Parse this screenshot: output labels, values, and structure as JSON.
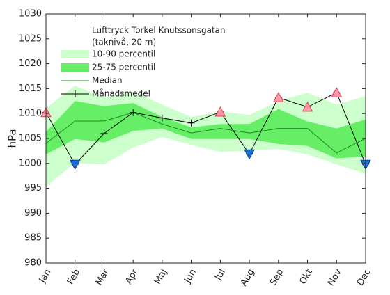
{
  "chart_data": {
    "type": "band-line",
    "legend_title": [
      "Lufttryck Torkel Knutssonsgatan",
      "(taknivå, 20 m)"
    ],
    "ylabel": "hPa",
    "categories": [
      "Jan",
      "Feb",
      "Mar",
      "Apr",
      "Maj",
      "Jun",
      "Jul",
      "Aug",
      "Sep",
      "Okt",
      "Nov",
      "Dec"
    ],
    "ylim": [
      980,
      1030
    ],
    "yticks": [
      980,
      985,
      990,
      995,
      1000,
      1005,
      1010,
      1015,
      1020,
      1025,
      1030
    ],
    "legend": "upper left",
    "series": [
      {
        "name": "10-90 percentil",
        "kind": "band",
        "color": "#ccffcc",
        "upper": [
          1011.1,
          1015.6,
          1013.2,
          1014.4,
          1011.8,
          1009.3,
          1010.4,
          1009.7,
          1012.5,
          1014.2,
          1011.8,
          1013.5
        ],
        "lower": [
          995.4,
          1000.1,
          999.8,
          1003.2,
          1005.3,
          1003.7,
          1002.3,
          1002.6,
          1002.9,
          1001.8,
          999.8,
          997.9
        ]
      },
      {
        "name": "25-75 percentil",
        "kind": "band",
        "color": "#66ee66",
        "upper": [
          1006.3,
          1012.5,
          1011.5,
          1012.1,
          1009.3,
          1007.2,
          1007.9,
          1007.9,
          1010.9,
          1008.4,
          1007.0,
          1008.8
        ],
        "lower": [
          1001.8,
          1004.9,
          1004.2,
          1006.5,
          1007.0,
          1004.9,
          1004.9,
          1004.9,
          1003.9,
          1003.5,
          1001.0,
          1001.4
        ]
      },
      {
        "name": "Median",
        "kind": "line",
        "color": "#1f8a1f",
        "values": [
          1004.0,
          1008.5,
          1008.5,
          1010.2,
          1007.9,
          1006.1,
          1007.0,
          1006.1,
          1007.0,
          1007.0,
          1002.1,
          1005.0
        ]
      },
      {
        "name": "Månadsmedel",
        "kind": "line",
        "color": "#000000",
        "marker": "+",
        "values": [
          1010.2,
          999.8,
          1006.0,
          1010.2,
          1009.1,
          1008.1,
          1010.3,
          1001.9,
          1013.2,
          1011.3,
          1014.2,
          999.8
        ],
        "flags": [
          "up",
          "down",
          null,
          null,
          null,
          null,
          "up",
          "down",
          "up",
          "up",
          "up",
          "down"
        ],
        "flag_colors": {
          "up": "#ff99aa",
          "down": "#1a6fd6"
        }
      }
    ]
  }
}
